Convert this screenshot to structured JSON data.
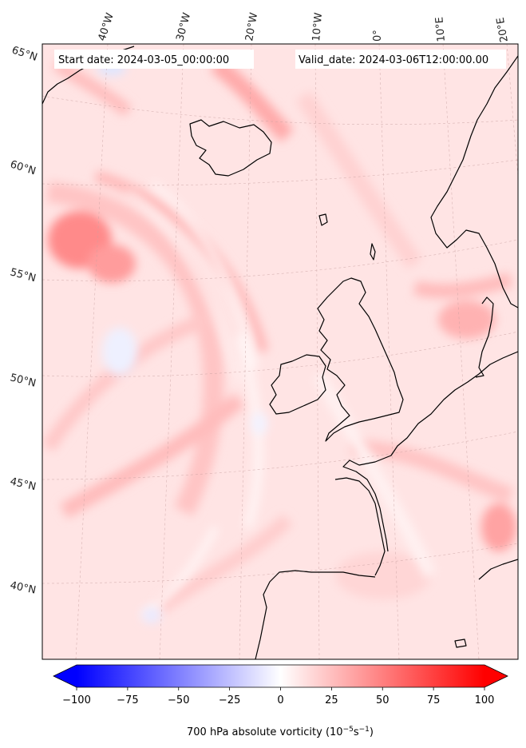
{
  "header": {
    "start_date": "Start date: 2024-03-05_00:00:00",
    "valid_date": "Valid_date: 2024-03-06T12:00:00.00"
  },
  "longitude_labels": [
    "40°W",
    "30°W",
    "20°W",
    "10°W",
    "0°",
    "10°E",
    "20°E"
  ],
  "latitude_labels": [
    "65°N",
    "60°N",
    "55°N",
    "50°N",
    "45°N",
    "40°N"
  ],
  "colorbar": {
    "label_prefix": "700 hPa absolute vorticity (10",
    "label_exp1": "−5",
    "label_mid": "s",
    "label_exp2": "−1",
    "label_suffix": ")",
    "ticks": [
      "−100",
      "−75",
      "−50",
      "−25",
      "0",
      "25",
      "50",
      "75",
      "100"
    ],
    "min": -100,
    "max": 100,
    "colormap": "bwr",
    "extend": "both"
  },
  "colors": {
    "background_field": "#ffe6e6",
    "coastline": "#000000",
    "strong_positive": "#ff7f7f",
    "negative": "#eef2ff"
  }
}
